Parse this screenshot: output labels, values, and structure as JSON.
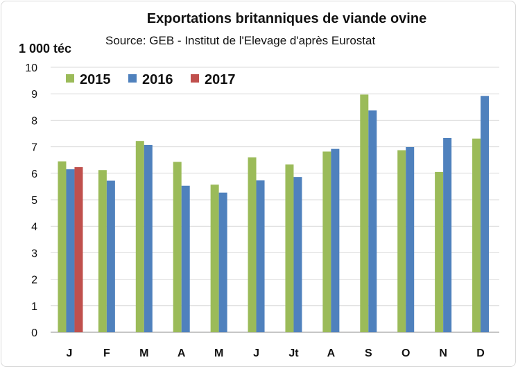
{
  "chart_data": {
    "type": "bar",
    "title": "Exportations britanniques de viande ovine",
    "subtitle": "Source: GEB - Institut de l'Elevage d'après Eurostat",
    "ylabel": "1 000 téc",
    "xlabel": "",
    "ylim": [
      0,
      10
    ],
    "yticks": [
      "0",
      "1",
      "2",
      "3",
      "4",
      "5",
      "6",
      "7",
      "8",
      "9",
      "10"
    ],
    "grid": true,
    "legend_position": "top-left",
    "categories": [
      "J",
      "F",
      "M",
      "A",
      "M",
      "J",
      "Jt",
      "A",
      "S",
      "O",
      "N",
      "D"
    ],
    "series": [
      {
        "name": "2015",
        "color": "#9bbb59",
        "values": [
          6.45,
          6.12,
          7.22,
          6.43,
          5.57,
          6.6,
          6.33,
          6.82,
          8.97,
          6.87,
          6.05,
          7.31
        ]
      },
      {
        "name": "2016",
        "color": "#4f81bd",
        "values": [
          6.15,
          5.72,
          7.07,
          5.53,
          5.27,
          5.73,
          5.86,
          6.92,
          8.37,
          6.99,
          7.33,
          8.92
        ]
      },
      {
        "name": "2017",
        "color": "#c0504d",
        "values": [
          6.23,
          null,
          null,
          null,
          null,
          null,
          null,
          null,
          null,
          null,
          null,
          null
        ]
      }
    ]
  }
}
